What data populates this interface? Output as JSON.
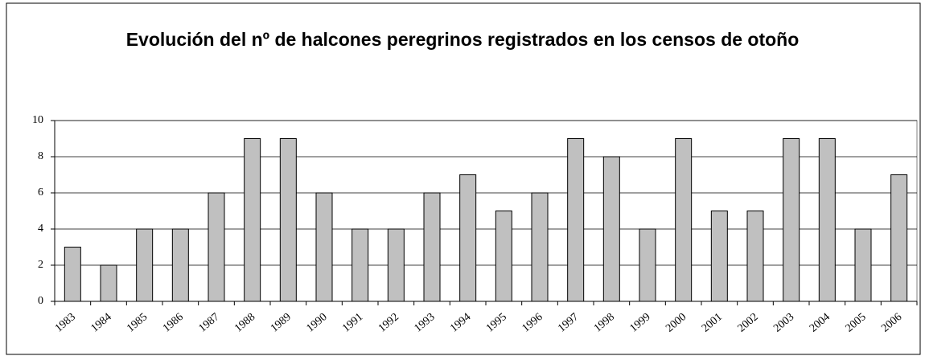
{
  "chart_data": {
    "type": "bar",
    "title": "Evolución del nº de halcones peregrinos registrados en los censos de otoño",
    "categories": [
      "1983",
      "1984",
      "1985",
      "1986",
      "1987",
      "1988",
      "1989",
      "1990",
      "1991",
      "1992",
      "1993",
      "1994",
      "1995",
      "1996",
      "1997",
      "1998",
      "1999",
      "2000",
      "2001",
      "2002",
      "2003",
      "2004",
      "2005",
      "2006"
    ],
    "values": [
      3,
      2,
      4,
      4,
      6,
      9,
      9,
      6,
      4,
      4,
      6,
      7,
      5,
      6,
      9,
      8,
      4,
      9,
      5,
      5,
      9,
      9,
      4,
      7
    ],
    "color": "#c0c0c0",
    "ylim": [
      0,
      10
    ],
    "yticks": [
      0,
      2,
      4,
      6,
      8,
      10
    ],
    "grid": true
  }
}
